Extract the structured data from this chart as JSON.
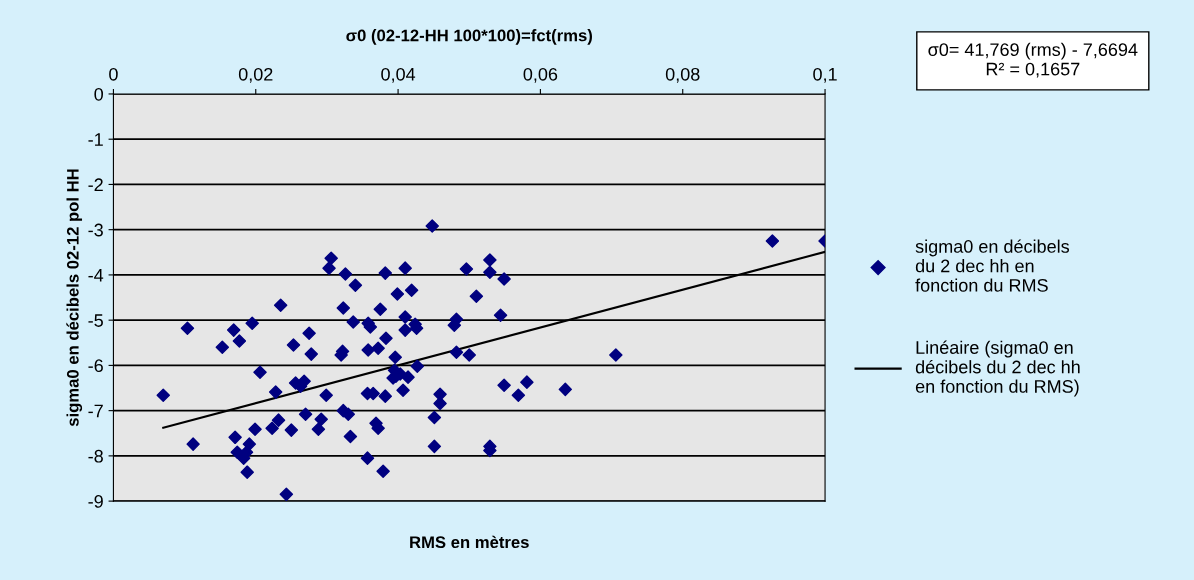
{
  "chart_data": {
    "type": "scatter",
    "title": "σ0 (02-12-HH 100*100)=fct(rms)",
    "xlabel": "RMS en mètres",
    "ylabel": "sigma0 en décibels 02-12 pol HH",
    "annotations": [
      "σ0= 41,769 (rms) - 7,6694\nR² = 0,1657"
    ],
    "xlim": [
      0,
      0.1
    ],
    "ylim": [
      -9,
      0
    ],
    "xticks": [
      {
        "value": 0,
        "label": "0"
      },
      {
        "value": 0.02,
        "label": "0,02"
      },
      {
        "value": 0.04,
        "label": "0,04"
      },
      {
        "value": 0.06,
        "label": "0,06"
      },
      {
        "value": 0.08,
        "label": "0,08"
      },
      {
        "value": 0.1,
        "label": "0,1"
      }
    ],
    "yticks": [
      0,
      -1,
      -2,
      -3,
      -4,
      -5,
      -6,
      -7,
      -8,
      -9
    ],
    "grid": "y",
    "legend": "right",
    "series": [
      {
        "name": "sigma0 en décibels\ndu 2 dec hh en\nfonction du RMS",
        "marker": "diamond",
        "color": "#000080",
        "x": [
          0.007,
          0.0104,
          0.0112,
          0.0153,
          0.0169,
          0.0177,
          0.0171,
          0.0174,
          0.0183,
          0.0187,
          0.0191,
          0.0188,
          0.0195,
          0.0199,
          0.0206,
          0.0223,
          0.0228,
          0.0232,
          0.0235,
          0.0243,
          0.025,
          0.0253,
          0.0256,
          0.0263,
          0.0268,
          0.027,
          0.0275,
          0.0278,
          0.0288,
          0.0292,
          0.0299,
          0.0303,
          0.0306,
          0.032,
          0.0322,
          0.0323,
          0.0326,
          0.0323,
          0.033,
          0.0333,
          0.0337,
          0.034,
          0.0357,
          0.0357,
          0.0358,
          0.0361,
          0.0358,
          0.0365,
          0.0369,
          0.0372,
          0.0372,
          0.0375,
          0.0379,
          0.0382,
          0.0382,
          0.0383,
          0.0393,
          0.0395,
          0.0396,
          0.0397,
          0.0399,
          0.0403,
          0.0407,
          0.041,
          0.041,
          0.041,
          0.0414,
          0.0419,
          0.0424,
          0.0426,
          0.0427,
          0.0448,
          0.0451,
          0.0451,
          0.0459,
          0.0459,
          0.0479,
          0.0482,
          0.0482,
          0.0496,
          0.05,
          0.051,
          0.0529,
          0.0529,
          0.0529,
          0.0529,
          0.0544,
          0.0549,
          0.0549,
          0.0569,
          0.0581,
          0.0635,
          0.0706,
          0.0926,
          0.1
        ],
        "values": [
          -6.66,
          -5.18,
          -7.74,
          -5.6,
          -5.22,
          -5.46,
          -7.59,
          -7.92,
          -8.05,
          -7.92,
          -7.74,
          -8.36,
          -5.07,
          -7.41,
          -6.15,
          -7.39,
          -6.59,
          -7.21,
          -4.67,
          -8.85,
          -7.43,
          -5.55,
          -6.39,
          -6.46,
          -6.35,
          -7.08,
          -5.29,
          -5.75,
          -7.41,
          -7.19,
          -6.66,
          -3.85,
          -3.63,
          -5.77,
          -5.69,
          -4.73,
          -3.98,
          -7.0,
          -7.08,
          -7.57,
          -5.04,
          -4.23,
          -8.05,
          -6.62,
          -5.07,
          -5.15,
          -5.66,
          -6.62,
          -7.28,
          -7.39,
          -5.62,
          -4.76,
          -8.34,
          -6.68,
          -3.96,
          -5.4,
          -6.28,
          -6.11,
          -5.82,
          -6.24,
          -4.42,
          -6.19,
          -6.55,
          -3.85,
          -5.22,
          -4.93,
          -6.26,
          -4.34,
          -5.09,
          -5.18,
          -6.02,
          -2.92,
          -7.15,
          -7.79,
          -6.64,
          -6.84,
          -5.11,
          -4.98,
          -5.71,
          -3.87,
          -5.77,
          -4.47,
          -3.67,
          -3.94,
          -7.79,
          -7.88,
          -4.89,
          -4.09,
          -6.44,
          -6.66,
          -6.37,
          -6.53,
          -5.77,
          -3.25,
          -3.25
        ]
      },
      {
        "name": "Linéaire (sigma0 en\ndécibels du 2 dec hh\nen fonction du RMS)",
        "type": "line",
        "color": "#000000",
        "line_style": "solid",
        "marker": "none",
        "x": [
          0.007,
          0.1
        ],
        "values": [
          -7.38,
          -3.49
        ]
      }
    ]
  }
}
